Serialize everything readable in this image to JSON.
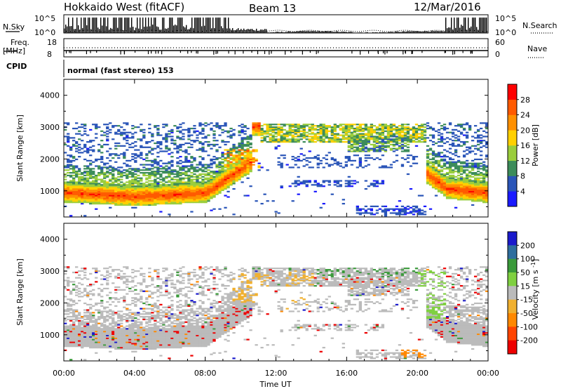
{
  "header": {
    "station": "Hokkaido West (fitACF)",
    "beam": "Beam 13",
    "date": "12/Mar/2016"
  },
  "noise_panel": {
    "left_label": "N.Sky",
    "right_label": "N.Search",
    "y_ticks_left": [
      "10^5",
      "10^0"
    ],
    "y_ticks_right": [
      "10^5",
      "10^0"
    ]
  },
  "freq_panel": {
    "left_label_1": "Freq.",
    "left_label_2": "[MHz]",
    "right_label": "Nave",
    "left_ticks": [
      "18",
      "8"
    ],
    "right_ticks": [
      "60",
      "0"
    ],
    "freq_value_mhz": 12,
    "nave_value": 30
  },
  "cpid": {
    "label": "CPID",
    "mode": "normal (fast stereo) 153"
  },
  "chart_data": [
    {
      "type": "heatmap",
      "title": "",
      "ylabel": "Slant Range [km]",
      "xlabel": "",
      "x_range": [
        "00:00",
        "24:00"
      ],
      "ylim": [
        180,
        4500
      ],
      "y_ticks": [
        1000,
        2000,
        3000,
        4000
      ],
      "colorbar": {
        "label": "Power [dB]",
        "ticks": [
          "4",
          "8",
          "12",
          "16",
          "20",
          "24",
          "28"
        ],
        "colors": [
          "#1a1aff",
          "#2a55b8",
          "#3c8c5a",
          "#9acd3c",
          "#ffd000",
          "#ff9000",
          "#ff5a00",
          "#ff0000"
        ],
        "range": [
          0,
          30
        ]
      }
    },
    {
      "type": "heatmap",
      "title": "",
      "ylabel": "Slant Range [km]",
      "xlabel": "Time UT",
      "x_range": [
        "00:00",
        "24:00"
      ],
      "ylim": [
        180,
        4500
      ],
      "y_ticks": [
        1000,
        2000,
        3000,
        4000
      ],
      "x_ticks": [
        "00:00",
        "04:00",
        "08:00",
        "12:00",
        "16:00",
        "20:00",
        "00:00"
      ],
      "colorbar": {
        "label": "Velocity [m s^-1]",
        "ticks": [
          "200",
          "100",
          "50",
          "15",
          "-15",
          "-50",
          "-100",
          "-200"
        ],
        "colors": [
          "#1a1acc",
          "#2e6e9e",
          "#3a9a3a",
          "#7fd040",
          "#bbbbbb",
          "#f0b030",
          "#ff8800",
          "#ff4400",
          "#ee0000"
        ]
      }
    }
  ]
}
